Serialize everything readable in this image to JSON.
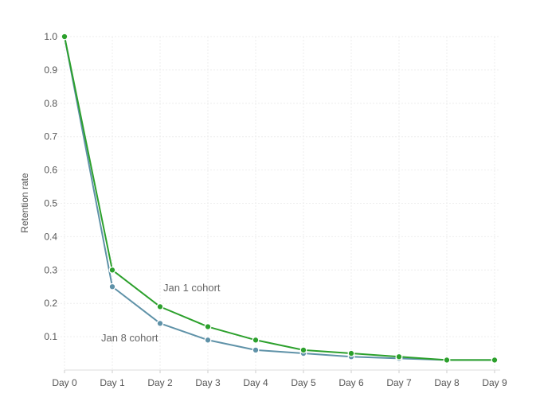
{
  "chart_data": {
    "type": "line",
    "title": "",
    "xlabel": "",
    "ylabel": "Retention rate",
    "categories": [
      "Day 0",
      "Day 1",
      "Day 2",
      "Day 3",
      "Day 4",
      "Day 5",
      "Day 6",
      "Day 7",
      "Day 8",
      "Day 9"
    ],
    "y_ticks": [
      "1.0",
      "0.9",
      "0.8",
      "0.7",
      "0.6",
      "0.5",
      "0.4",
      "0.3",
      "0.2",
      "0.1"
    ],
    "ylim": [
      0,
      1.0
    ],
    "grid": true,
    "series": [
      {
        "name": "Jan 1 cohort",
        "color": "#2ca02c",
        "values": [
          1.0,
          0.3,
          0.19,
          0.13,
          0.09,
          0.06,
          0.05,
          0.04,
          0.03,
          0.03
        ]
      },
      {
        "name": "Jan 8 cohort",
        "color": "#5f92a8",
        "values": [
          1.0,
          0.25,
          0.14,
          0.09,
          0.06,
          0.05,
          0.04,
          0.035,
          0.03,
          0.03
        ]
      }
    ]
  }
}
